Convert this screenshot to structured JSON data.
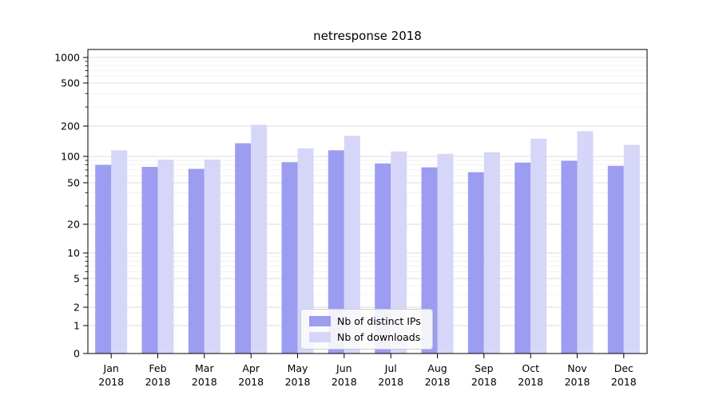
{
  "chart_data": {
    "type": "bar",
    "title": "netresponse 2018",
    "yscale": "symlog",
    "ylim": [
      0,
      1400
    ],
    "grid": true,
    "legend_position": "lower center",
    "yticks": [
      0,
      1,
      2,
      5,
      10,
      20,
      50,
      100,
      200,
      500,
      1000
    ],
    "minor_yticks": [
      3,
      4,
      6,
      7,
      8,
      9,
      30,
      40,
      60,
      70,
      80,
      90,
      300,
      400,
      600,
      700,
      800,
      900
    ],
    "categories": [
      "Jan 2018",
      "Feb 2018",
      "Mar 2018",
      "Apr 2018",
      "May 2018",
      "Jun 2018",
      "Jul 2018",
      "Aug 2018",
      "Sep 2018",
      "Oct 2018",
      "Nov 2018",
      "Dec 2018"
    ],
    "series": [
      {
        "name": "Nb of distinct IPs",
        "color": "#9c9cf0",
        "values": [
          80,
          76,
          72,
          135,
          86,
          115,
          83,
          75,
          66,
          85,
          89,
          78
        ]
      },
      {
        "name": "Nb of downloads",
        "color": "#d6d6f9",
        "values": [
          115,
          92,
          92,
          205,
          120,
          160,
          112,
          106,
          110,
          150,
          178,
          130
        ]
      }
    ],
    "axis_color": "#000000",
    "major_grid_color": "#dcdcdc",
    "minor_grid_color": "#efefef"
  }
}
